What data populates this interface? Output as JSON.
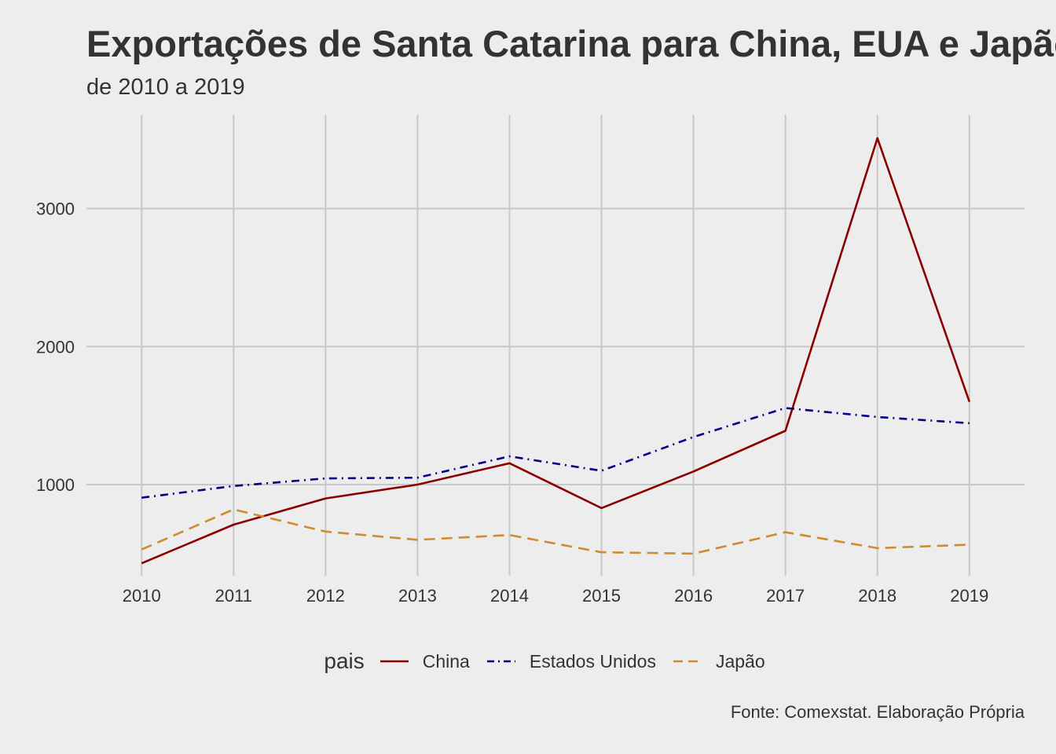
{
  "title": "Exportações de Santa Catarina para China, EUA e Japão",
  "subtitle": "de 2010 a 2019",
  "caption": "Fonte: Comexstat. Elaboração Própria",
  "legend": {
    "title": "pais"
  },
  "chart_data": {
    "type": "line",
    "title": "Exportações de Santa Catarina para China, EUA e Japão",
    "subtitle": "de 2010 a 2019",
    "xlabel": "",
    "ylabel": "",
    "x": [
      2010,
      2011,
      2012,
      2013,
      2014,
      2015,
      2016,
      2017,
      2018,
      2019
    ],
    "yticks": [
      1000,
      2000,
      3000
    ],
    "ylim": [
      340,
      3680
    ],
    "grid": true,
    "legend_position": "bottom",
    "series": [
      {
        "name": "China",
        "color": "#8b0000",
        "dash": "solid",
        "values": [
          430,
          710,
          900,
          1000,
          1155,
          830,
          1095,
          1390,
          3510,
          1600
        ]
      },
      {
        "name": "Estados Unidos",
        "color": "#00008b",
        "dash": "dotdash",
        "values": [
          905,
          990,
          1045,
          1050,
          1205,
          1100,
          1345,
          1555,
          1490,
          1445
        ]
      },
      {
        "name": "Japão",
        "color": "#cd8c2e",
        "dash": "dashed",
        "values": [
          530,
          820,
          660,
          600,
          635,
          510,
          500,
          655,
          540,
          565
        ]
      }
    ]
  }
}
